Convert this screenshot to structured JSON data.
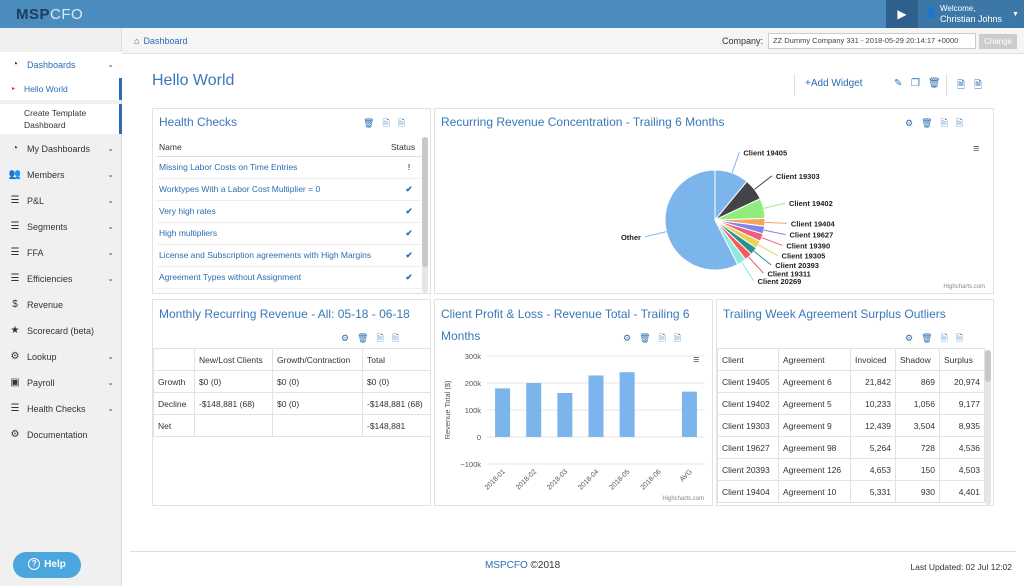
{
  "app": {
    "logo_main": "MSP",
    "logo_cfo": "CFO"
  },
  "user": {
    "welcome": "Welcome,",
    "name": "Christian Johns"
  },
  "sidebar": {
    "items": [
      {
        "label": "Dashboards",
        "icon": "dashboard-icon"
      },
      {
        "label": "My Dashboards",
        "icon": "dashboard-icon"
      },
      {
        "label": "Members",
        "icon": "users-icon"
      },
      {
        "label": "P&L",
        "icon": "list-icon"
      },
      {
        "label": "Segments",
        "icon": "list-icon"
      },
      {
        "label": "FFA",
        "icon": "list-icon"
      },
      {
        "label": "Efficiencies",
        "icon": "list-icon"
      },
      {
        "label": "Revenue",
        "icon": "dollar-icon"
      },
      {
        "label": "Scorecard (beta)",
        "icon": "star-icon"
      },
      {
        "label": "Lookup",
        "icon": "gears-icon"
      },
      {
        "label": "Payroll",
        "icon": "money-icon"
      },
      {
        "label": "Health Checks",
        "icon": "list-icon"
      },
      {
        "label": "Documentation",
        "icon": "gears-icon"
      }
    ],
    "sub": {
      "hello": "Hello World",
      "create1": "Create Template",
      "create2": "Dashboard"
    },
    "help": "Help"
  },
  "breadcrumb": {
    "label": "Dashboard"
  },
  "company": {
    "label": "Company:",
    "value": "ZZ Dummy Company 331 - 2018-05-29 20:14:17 +0000",
    "change": "Change"
  },
  "page": {
    "title": "Hello World",
    "add_widget": "+Add Widget"
  },
  "health": {
    "title": "Health Checks",
    "col_name": "Name",
    "col_status": "Status",
    "rows": [
      {
        "name": "Missing Labor Costs on Time Entries",
        "status": "!"
      },
      {
        "name": "Worktypes With a Labor Cost Multiplier = 0",
        "status": "✔"
      },
      {
        "name": "Very high rates",
        "status": "✔"
      },
      {
        "name": "High multipliers",
        "status": "✔"
      },
      {
        "name": "License and Subscription agreements with High Margins",
        "status": "✔"
      },
      {
        "name": "Agreement Types without Assignment",
        "status": "✔"
      }
    ]
  },
  "recurring": {
    "title": "Recurring Revenue Concentration - Trailing 6 Months",
    "credit": "Highcharts.com"
  },
  "mrr": {
    "title": "Monthly Recurring Revenue - All: 05-18 - 06-18",
    "headers": [
      "",
      "New/Lost Clients",
      "Growth/Contraction",
      "Total"
    ],
    "rows": [
      [
        "Growth",
        "$0 (0)",
        "$0 (0)",
        "$0 (0)"
      ],
      [
        "Decline",
        "-$148,881 (68)",
        "$0 (0)",
        "-$148,881 (68)"
      ],
      [
        "Net",
        "",
        "",
        "-$148,881"
      ]
    ]
  },
  "profit": {
    "title1": "Client Profit & Loss - Revenue Total - Trailing 6",
    "title2": "Months",
    "credit": "Highcharts.com"
  },
  "trailing": {
    "title": "Trailing Week Agreement Surplus Outliers",
    "headers": [
      "Client",
      "Agreement",
      "Invoiced",
      "Shadow",
      "Surplus"
    ],
    "rows": [
      [
        "Client 19405",
        "Agreement 6",
        "21,842",
        "869",
        "20,974"
      ],
      [
        "Client 19402",
        "Agreement 5",
        "10,233",
        "1,056",
        "9,177"
      ],
      [
        "Client 19303",
        "Agreement 9",
        "12,439",
        "3,504",
        "8,935"
      ],
      [
        "Client 19627",
        "Agreement 98",
        "5,264",
        "728",
        "4,536"
      ],
      [
        "Client 20393",
        "Agreement 126",
        "4,653",
        "150",
        "4,503"
      ],
      [
        "Client 19404",
        "Agreement 10",
        "5,331",
        "930",
        "4,401"
      ]
    ]
  },
  "footer": {
    "brand": "MSPCFO",
    "copy": " ©2018",
    "updated": "Last Updated: 02 Jul 12:02"
  },
  "chart_data": [
    {
      "type": "pie",
      "title": "Recurring Revenue Concentration - Trailing 6 Months",
      "slices": [
        {
          "label": "Client 19405",
          "value": 11,
          "color": "#7cb5ec"
        },
        {
          "label": "Client 19303",
          "value": 7,
          "color": "#434348"
        },
        {
          "label": "Client 19402",
          "value": 6.5,
          "color": "#90ed7d"
        },
        {
          "label": "Client 19404",
          "value": 2.5,
          "color": "#f7a35c"
        },
        {
          "label": "Client 19627",
          "value": 2.5,
          "color": "#8085e9"
        },
        {
          "label": "Client 19390",
          "value": 2.5,
          "color": "#f15c80"
        },
        {
          "label": "Client 19305",
          "value": 2.5,
          "color": "#e4d354"
        },
        {
          "label": "Client 20393",
          "value": 2.5,
          "color": "#2b908f"
        },
        {
          "label": "Client 19311",
          "value": 2.5,
          "color": "#f45b5b"
        },
        {
          "label": "Client 20269",
          "value": 3,
          "color": "#91e8e1"
        },
        {
          "label": "Other",
          "value": 57.5,
          "color": "#7cb5ec"
        }
      ]
    },
    {
      "type": "bar",
      "title": "Client Profit & Loss - Revenue Total - Trailing 6 Months",
      "categories": [
        "2018-01",
        "2018-02",
        "2018-03",
        "2018-04",
        "2018-05",
        "2018-06",
        "AVG"
      ],
      "values": [
        180000,
        200000,
        163000,
        228000,
        240000,
        0,
        168000
      ],
      "ylabel": "Revenue Total ($)",
      "ylim": [
        -100000,
        300000
      ],
      "yticks": [
        "300k",
        "200k",
        "100k",
        "0",
        "−100k"
      ],
      "color": "#7cb5ec"
    }
  ]
}
